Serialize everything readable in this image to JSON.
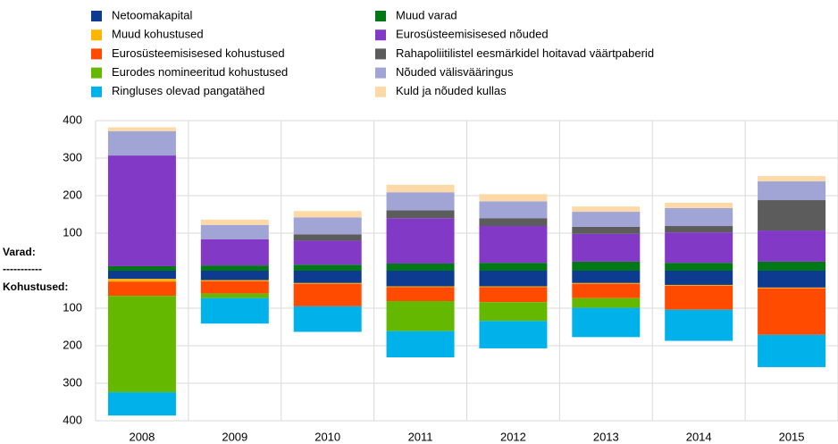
{
  "chart_data": {
    "type": "stacked_bar",
    "categories": [
      "2008",
      "2009",
      "2010",
      "2011",
      "2012",
      "2013",
      "2014",
      "2015"
    ],
    "y_label": [
      "Varad:",
      "-----------",
      "Kohustused:"
    ],
    "series": [
      {
        "name": "Netoomakapital",
        "color": "#0c3b8f",
        "values": [
          -22,
          -25,
          -33,
          -42,
          -42,
          -33,
          -38,
          -45
        ]
      },
      {
        "name": "Muud kohustused",
        "color": "#ffb400",
        "values": [
          -7,
          -3,
          -2,
          -2,
          -2,
          -2,
          -2,
          -2
        ]
      },
      {
        "name": "Eurosüsteemisisesed kohustused",
        "color": "#ff4b00",
        "values": [
          -38,
          -33,
          -60,
          -37,
          -40,
          -38,
          -64,
          -124
        ]
      },
      {
        "name": "Eurodes nomineeritud kohustused",
        "color": "#65b800",
        "values": [
          -257,
          -12,
          0,
          -80,
          -50,
          -26,
          0,
          0
        ]
      },
      {
        "name": "Ringluses olevad pangatähed",
        "color": "#00b1ea",
        "values": [
          -62,
          -68,
          -68,
          -70,
          -73,
          -78,
          -83,
          -86
        ]
      },
      {
        "name": "Muud varad",
        "color": "#007816",
        "values": [
          12,
          14,
          16,
          19,
          21,
          24,
          21,
          24
        ]
      },
      {
        "name": "Eurosüsteemisisesed nõuded",
        "color": "#8139c6",
        "values": [
          295,
          70,
          64,
          121,
          98,
          74,
          81,
          83
        ]
      },
      {
        "name": "Rahapoliitilistel eesmärkidel hoitavad väärtpaberid",
        "color": "#5c5c5c",
        "values": [
          0,
          0,
          17,
          21,
          21,
          19,
          17,
          81
        ]
      },
      {
        "name": "Nõuded välisvääringus",
        "color": "#a0a5d6",
        "values": [
          65,
          38,
          45,
          48,
          45,
          40,
          48,
          50
        ]
      },
      {
        "name": "Kuld ja nõuded kullas",
        "color": "#fdd9a8",
        "values": [
          10,
          14,
          17,
          20,
          19,
          14,
          14,
          14
        ]
      }
    ],
    "ylim": [
      -400,
      400
    ],
    "yticks": [
      400,
      300,
      200,
      100,
      {
        "value": -100,
        "label": "100"
      },
      {
        "value": -200,
        "label": "200"
      },
      {
        "value": -300,
        "label": "300"
      },
      {
        "value": -400,
        "label": "400"
      }
    ],
    "grid": true
  }
}
